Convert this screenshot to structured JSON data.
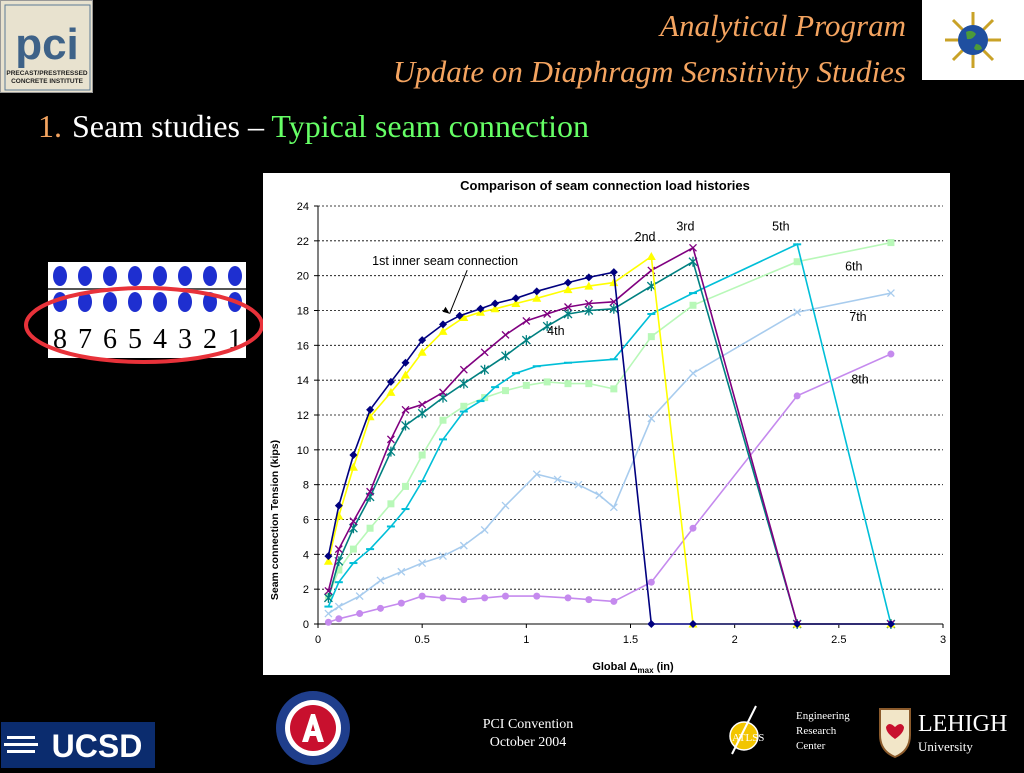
{
  "header": {
    "title_line1": "Analytical Program",
    "title_line2": "Update on Diaphragm Sensitivity Studies"
  },
  "subtitle": {
    "number": "1.",
    "lead": "Seam studies – ",
    "highlight": "Typical seam connection"
  },
  "logos": {
    "pci_main": "pci",
    "pci_line1": "PRECAST/PRESTRESSED",
    "pci_line2": "CONCRETE INSTITUTE",
    "ucsd": "UCSD",
    "atlss": "ATLSS",
    "lehigh": "LEHIGH",
    "lehigh_sub": "University"
  },
  "footer": {
    "line1": "PCI Convention",
    "line2": "October 2004"
  },
  "erc": {
    "line1": "Engineering",
    "line2": "Research",
    "line3": "Center"
  },
  "seam_numbers": [
    "8",
    "7",
    "6",
    "5",
    "4",
    "3",
    "2",
    "1"
  ],
  "colors": {
    "title": "#F4A460",
    "highlight": "#66FF66",
    "ring": "#E8323A"
  },
  "chart_data": {
    "type": "line",
    "title": "Comparison of seam connection load histories",
    "xlabel_parts": [
      "Global ",
      "Δ",
      "max",
      " (in)"
    ],
    "ylabel": "Seam connection Tension (kips)",
    "xlim": [
      0,
      3
    ],
    "ylim": [
      0,
      24
    ],
    "xticks": [
      "0",
      "0.5",
      "1",
      "1.5",
      "2",
      "2.5",
      "3"
    ],
    "yticks": [
      "0",
      "2",
      "4",
      "6",
      "8",
      "10",
      "12",
      "14",
      "16",
      "18",
      "20",
      "22",
      "24"
    ],
    "grid": "horizontal-dashed",
    "series": [
      {
        "name": "1st",
        "color": "#00007F",
        "marker": "diamond",
        "points": [
          [
            0.05,
            3.9
          ],
          [
            0.1,
            6.8
          ],
          [
            0.17,
            9.7
          ],
          [
            0.25,
            12.3
          ],
          [
            0.35,
            13.9
          ],
          [
            0.42,
            15.0
          ],
          [
            0.5,
            16.3
          ],
          [
            0.6,
            17.2
          ],
          [
            0.68,
            17.7
          ],
          [
            0.78,
            18.1
          ],
          [
            0.85,
            18.4
          ],
          [
            0.95,
            18.7
          ],
          [
            1.05,
            19.1
          ],
          [
            1.2,
            19.6
          ],
          [
            1.3,
            19.9
          ],
          [
            1.42,
            20.2
          ],
          [
            1.6,
            0
          ],
          [
            1.8,
            0
          ],
          [
            2.3,
            0
          ],
          [
            2.75,
            0
          ]
        ]
      },
      {
        "name": "2nd",
        "color": "#FFFF00",
        "marker": "triangle",
        "points": [
          [
            0.05,
            3.6
          ],
          [
            0.1,
            6.2
          ],
          [
            0.17,
            9.0
          ],
          [
            0.25,
            11.9
          ],
          [
            0.35,
            13.3
          ],
          [
            0.42,
            14.3
          ],
          [
            0.5,
            15.6
          ],
          [
            0.6,
            16.8
          ],
          [
            0.7,
            17.6
          ],
          [
            0.78,
            17.9
          ],
          [
            0.85,
            18.1
          ],
          [
            0.95,
            18.4
          ],
          [
            1.05,
            18.7
          ],
          [
            1.2,
            19.2
          ],
          [
            1.3,
            19.4
          ],
          [
            1.42,
            19.6
          ],
          [
            1.6,
            21.1
          ],
          [
            1.8,
            0
          ],
          [
            2.3,
            0
          ],
          [
            2.75,
            0
          ]
        ]
      },
      {
        "name": "3rd",
        "color": "#800080",
        "marker": "x",
        "points": [
          [
            0.05,
            1.9
          ],
          [
            0.1,
            4.3
          ],
          [
            0.17,
            5.9
          ],
          [
            0.25,
            7.6
          ],
          [
            0.35,
            10.6
          ],
          [
            0.42,
            12.3
          ],
          [
            0.5,
            12.6
          ],
          [
            0.6,
            13.3
          ],
          [
            0.7,
            14.6
          ],
          [
            0.8,
            15.6
          ],
          [
            0.9,
            16.6
          ],
          [
            1.0,
            17.4
          ],
          [
            1.1,
            17.8
          ],
          [
            1.2,
            18.2
          ],
          [
            1.3,
            18.4
          ],
          [
            1.42,
            18.5
          ],
          [
            1.6,
            20.3
          ],
          [
            1.8,
            21.6
          ],
          [
            2.3,
            0
          ],
          [
            2.75,
            0
          ]
        ]
      },
      {
        "name": "4th",
        "color": "#008080",
        "marker": "star",
        "points": [
          [
            0.05,
            1.5
          ],
          [
            0.1,
            3.6
          ],
          [
            0.17,
            5.5
          ],
          [
            0.25,
            7.3
          ],
          [
            0.35,
            9.9
          ],
          [
            0.42,
            11.4
          ],
          [
            0.5,
            12.1
          ],
          [
            0.6,
            13.0
          ],
          [
            0.7,
            13.8
          ],
          [
            0.8,
            14.6
          ],
          [
            0.9,
            15.4
          ],
          [
            1.0,
            16.3
          ],
          [
            1.1,
            17.1
          ],
          [
            1.2,
            17.8
          ],
          [
            1.3,
            18.0
          ],
          [
            1.42,
            18.1
          ],
          [
            1.6,
            19.4
          ],
          [
            1.8,
            20.8
          ],
          [
            2.3,
            0
          ],
          [
            2.75,
            0
          ]
        ]
      },
      {
        "name": "5th",
        "color": "#00BFD8",
        "marker": "dash",
        "points": [
          [
            0.05,
            1.0
          ],
          [
            0.1,
            2.4
          ],
          [
            0.17,
            3.5
          ],
          [
            0.25,
            4.3
          ],
          [
            0.35,
            5.6
          ],
          [
            0.42,
            6.6
          ],
          [
            0.5,
            8.2
          ],
          [
            0.6,
            10.6
          ],
          [
            0.7,
            12.2
          ],
          [
            0.78,
            12.8
          ],
          [
            0.85,
            13.6
          ],
          [
            0.95,
            14.4
          ],
          [
            1.05,
            14.8
          ],
          [
            1.2,
            15.0
          ],
          [
            1.42,
            15.2
          ],
          [
            1.6,
            17.8
          ],
          [
            1.8,
            19.0
          ],
          [
            2.3,
            21.8
          ],
          [
            2.75,
            0
          ]
        ]
      },
      {
        "name": "6th",
        "color": "#B8F8B8",
        "marker": "square",
        "points": [
          [
            0.05,
            1.6
          ],
          [
            0.1,
            3.1
          ],
          [
            0.17,
            4.3
          ],
          [
            0.25,
            5.5
          ],
          [
            0.35,
            6.9
          ],
          [
            0.42,
            7.9
          ],
          [
            0.5,
            9.7
          ],
          [
            0.6,
            11.7
          ],
          [
            0.7,
            12.5
          ],
          [
            0.8,
            13.0
          ],
          [
            0.9,
            13.4
          ],
          [
            1.0,
            13.7
          ],
          [
            1.1,
            13.9
          ],
          [
            1.2,
            13.8
          ],
          [
            1.3,
            13.8
          ],
          [
            1.42,
            13.5
          ],
          [
            1.6,
            16.5
          ],
          [
            1.8,
            18.3
          ],
          [
            2.3,
            20.8
          ],
          [
            2.75,
            21.9
          ]
        ]
      },
      {
        "name": "7th",
        "color": "#A8CCEE",
        "marker": "x",
        "points": [
          [
            0.05,
            0.6
          ],
          [
            0.1,
            1.0
          ],
          [
            0.2,
            1.6
          ],
          [
            0.3,
            2.5
          ],
          [
            0.4,
            3.0
          ],
          [
            0.5,
            3.5
          ],
          [
            0.6,
            3.9
          ],
          [
            0.7,
            4.5
          ],
          [
            0.8,
            5.4
          ],
          [
            0.9,
            6.8
          ],
          [
            1.05,
            8.6
          ],
          [
            1.15,
            8.3
          ],
          [
            1.25,
            8.0
          ],
          [
            1.35,
            7.4
          ],
          [
            1.42,
            6.7
          ],
          [
            1.6,
            11.8
          ],
          [
            1.8,
            14.4
          ],
          [
            2.3,
            17.9
          ],
          [
            2.75,
            19.0
          ]
        ]
      },
      {
        "name": "8th",
        "color": "#C58AEE",
        "marker": "circle",
        "points": [
          [
            0.05,
            0.1
          ],
          [
            0.1,
            0.3
          ],
          [
            0.2,
            0.6
          ],
          [
            0.3,
            0.9
          ],
          [
            0.4,
            1.2
          ],
          [
            0.5,
            1.6
          ],
          [
            0.6,
            1.5
          ],
          [
            0.7,
            1.4
          ],
          [
            0.8,
            1.5
          ],
          [
            0.9,
            1.6
          ],
          [
            1.05,
            1.6
          ],
          [
            1.2,
            1.5
          ],
          [
            1.3,
            1.4
          ],
          [
            1.42,
            1.3
          ],
          [
            1.6,
            2.4
          ],
          [
            1.8,
            5.5
          ],
          [
            2.3,
            13.1
          ],
          [
            2.75,
            15.5
          ]
        ]
      }
    ],
    "annotations": [
      {
        "text": "1st inner seam connection",
        "x": 0.67,
        "y": 17.7
      },
      {
        "text": "2nd",
        "x": 1.52,
        "y": 22.0
      },
      {
        "text": "3rd",
        "x": 1.72,
        "y": 22.6
      },
      {
        "text": "5th",
        "x": 2.18,
        "y": 22.6
      },
      {
        "text": "6th",
        "x": 2.53,
        "y": 20.3
      },
      {
        "text": "4th",
        "x": 1.1,
        "y": 16.6
      },
      {
        "text": "7th",
        "x": 2.55,
        "y": 17.4
      },
      {
        "text": "8th",
        "x": 2.56,
        "y": 13.8
      }
    ]
  }
}
